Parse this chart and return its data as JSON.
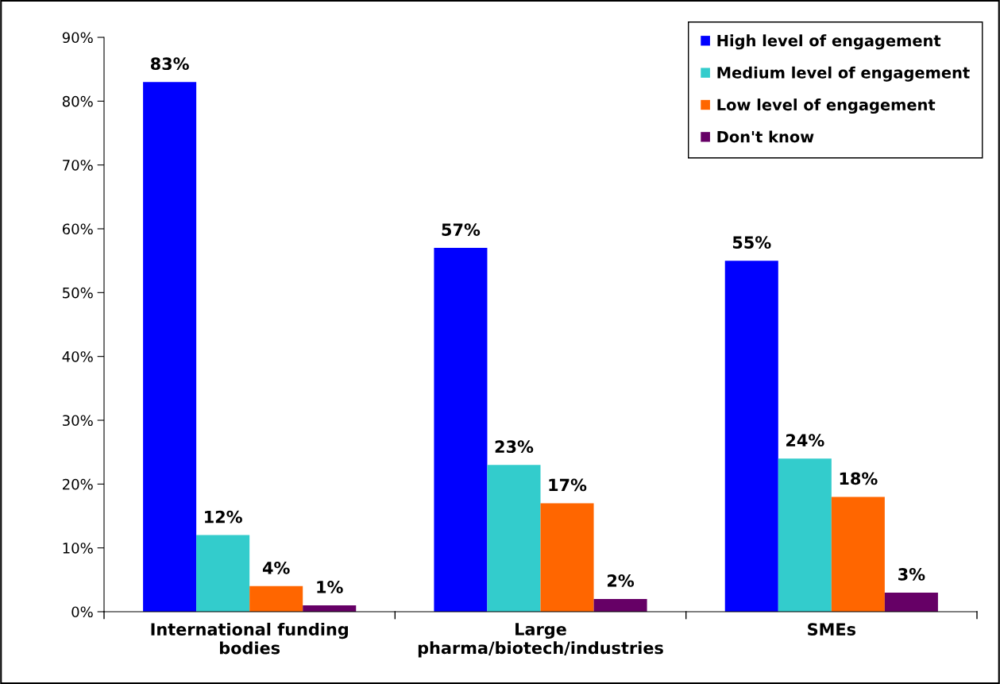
{
  "chart_data": {
    "type": "bar",
    "categories": [
      "International funding\nbodies",
      "Large\npharma/biotech/industries",
      "SMEs"
    ],
    "series": [
      {
        "name": "High level of engagement",
        "color": "#0000ff",
        "values": [
          83,
          57,
          55
        ],
        "value_labels": [
          "83%",
          "57%",
          "55%"
        ]
      },
      {
        "name": "Medium level of engagement",
        "color": "#33cccc",
        "values": [
          12,
          23,
          24
        ],
        "value_labels": [
          "12%",
          "23%",
          "24%"
        ]
      },
      {
        "name": "Low level of engagement",
        "color": "#ff6600",
        "values": [
          4,
          17,
          18
        ],
        "value_labels": [
          "4%",
          "17%",
          "18%"
        ]
      },
      {
        "name": "Don't know",
        "color": "#660066",
        "values": [
          1,
          2,
          3
        ],
        "value_labels": [
          "1%",
          "2%",
          "3%"
        ]
      }
    ],
    "ylim": [
      0,
      90
    ],
    "yticks": [
      {
        "value": 0,
        "label": "0%"
      },
      {
        "value": 10,
        "label": "10%"
      },
      {
        "value": 20,
        "label": "20%"
      },
      {
        "value": 30,
        "label": "30%"
      },
      {
        "value": 40,
        "label": "40%"
      },
      {
        "value": 50,
        "label": "50%"
      },
      {
        "value": 60,
        "label": "60%"
      },
      {
        "value": 70,
        "label": "70%"
      },
      {
        "value": 80,
        "label": "80%"
      },
      {
        "value": 90,
        "label": "90%"
      }
    ],
    "grid": false,
    "legend": "top right"
  }
}
